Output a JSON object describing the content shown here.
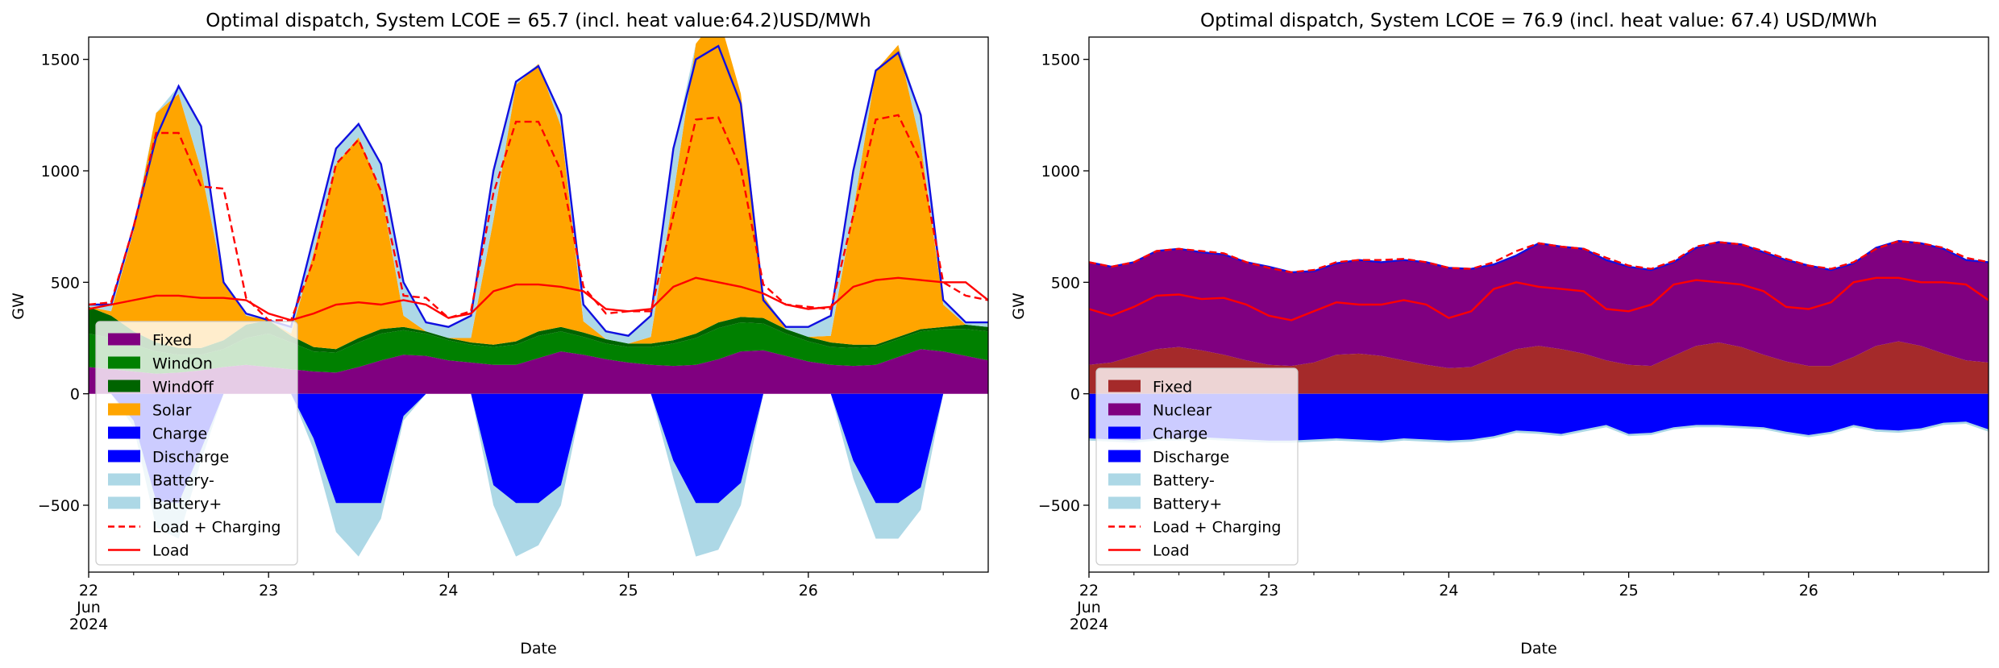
{
  "chart_data": [
    {
      "type": "area",
      "title": "Optimal dispatch, System LCOE = 65.7 (incl. heat value:64.2)USD/MWh",
      "xlabel": "Date",
      "ylabel": "GW",
      "xlim": [
        0,
        120
      ],
      "ylim": [
        -800,
        1600
      ],
      "grid": false,
      "legend_position": "lower-left",
      "x_ticks": [
        {
          "x": 0,
          "lines": [
            "22",
            "Jun",
            "2024"
          ]
        },
        {
          "x": 24,
          "lines": [
            "23"
          ]
        },
        {
          "x": 48,
          "lines": [
            "24"
          ]
        },
        {
          "x": 72,
          "lines": [
            "25"
          ]
        },
        {
          "x": 96,
          "lines": [
            "26"
          ]
        }
      ],
      "y_ticks": [
        -500,
        0,
        500,
        1000,
        1500
      ],
      "x": [
        0,
        3,
        6,
        9,
        12,
        15,
        18,
        21,
        24,
        27,
        30,
        33,
        36,
        39,
        42,
        45,
        48,
        51,
        54,
        57,
        60,
        63,
        66,
        69,
        72,
        75,
        78,
        81,
        84,
        87,
        90,
        93,
        96,
        99,
        102,
        105,
        108,
        111,
        114,
        117,
        120
      ],
      "stacks": [
        {
          "name": "Fixed",
          "color": "#800080",
          "values": [
            120,
            110,
            100,
            90,
            95,
            105,
            120,
            130,
            120,
            110,
            100,
            95,
            120,
            150,
            175,
            170,
            150,
            140,
            130,
            130,
            160,
            190,
            175,
            155,
            140,
            130,
            125,
            130,
            155,
            190,
            195,
            170,
            145,
            130,
            125,
            130,
            165,
            200,
            190,
            170,
            150
          ]
        },
        {
          "name": "WindOn",
          "color": "#008000",
          "values": [
            150,
            140,
            120,
            100,
            80,
            70,
            80,
            120,
            150,
            120,
            90,
            90,
            110,
            120,
            110,
            100,
            90,
            80,
            80,
            90,
            100,
            90,
            80,
            70,
            70,
            80,
            100,
            120,
            140,
            130,
            120,
            100,
            90,
            80,
            80,
            80,
            80,
            80,
            100,
            120,
            130
          ]
        },
        {
          "name": "WindOff",
          "color": "#006400",
          "values": [
            120,
            100,
            60,
            40,
            30,
            30,
            40,
            60,
            60,
            30,
            20,
            15,
            20,
            20,
            15,
            10,
            10,
            10,
            10,
            15,
            20,
            20,
            20,
            20,
            15,
            15,
            15,
            20,
            25,
            25,
            25,
            20,
            20,
            20,
            15,
            10,
            10,
            10,
            10,
            20,
            20
          ]
        },
        {
          "name": "Solar",
          "color": "#FFA500",
          "values": [
            0,
            20,
            450,
            1030,
            1140,
            800,
            260,
            40,
            0,
            10,
            420,
            830,
            900,
            620,
            50,
            0,
            0,
            20,
            560,
            1150,
            1200,
            900,
            50,
            0,
            0,
            30,
            650,
            1300,
            1380,
            1000,
            100,
            0,
            0,
            30,
            600,
            1230,
            1310,
            830,
            100,
            0,
            0
          ]
        }
      ],
      "upper": [
        {
          "name": "Battery+",
          "color": "#ADD8E6",
          "values": [
            400,
            400,
            750,
            1150,
            1380,
            1200,
            500,
            360,
            330,
            300,
            700,
            1100,
            1210,
            1030,
            500,
            320,
            300,
            350,
            1000,
            1400,
            1470,
            1250,
            400,
            280,
            260,
            350,
            1100,
            1500,
            1560,
            1300,
            420,
            300,
            300,
            350,
            1000,
            1450,
            1530,
            1250,
            420,
            320,
            320
          ]
        }
      ],
      "negative": [
        {
          "name": "Charge",
          "color": "#0000FF",
          "values": [
            0,
            0,
            -120,
            -480,
            -490,
            -250,
            0,
            0,
            0,
            0,
            -200,
            -490,
            -490,
            -490,
            -100,
            0,
            0,
            0,
            -410,
            -490,
            -490,
            -410,
            0,
            0,
            0,
            0,
            -300,
            -490,
            -490,
            -400,
            0,
            0,
            0,
            0,
            -300,
            -490,
            -490,
            -420,
            0,
            0,
            0
          ]
        },
        {
          "name": "Battery-",
          "color": "#ADD8E6",
          "values": [
            0,
            0,
            -150,
            -600,
            -650,
            -300,
            0,
            0,
            0,
            0,
            -250,
            -620,
            -730,
            -560,
            -120,
            0,
            0,
            0,
            -500,
            -730,
            -680,
            -500,
            0,
            0,
            0,
            0,
            -380,
            -730,
            -700,
            -500,
            0,
            0,
            0,
            0,
            -380,
            -650,
            -650,
            -520,
            0,
            0,
            0
          ]
        }
      ],
      "lines": [
        {
          "name": "Load + Charging",
          "color": "#FF0000",
          "dashed": true,
          "values": [
            400,
            410,
            750,
            1170,
            1170,
            930,
            920,
            430,
            330,
            330,
            600,
            1030,
            1140,
            910,
            440,
            430,
            340,
            370,
            900,
            1220,
            1220,
            1000,
            480,
            360,
            370,
            370,
            800,
            1230,
            1240,
            1010,
            490,
            400,
            390,
            380,
            800,
            1230,
            1250,
            1040,
            500,
            440,
            420
          ]
        },
        {
          "name": "Load",
          "color": "#FF0000",
          "dashed": false,
          "values": [
            380,
            400,
            420,
            440,
            440,
            430,
            430,
            420,
            360,
            330,
            360,
            400,
            410,
            400,
            420,
            400,
            340,
            360,
            460,
            490,
            490,
            480,
            460,
            380,
            370,
            380,
            480,
            520,
            500,
            480,
            450,
            400,
            380,
            390,
            480,
            510,
            520,
            510,
            500,
            500,
            420
          ]
        }
      ],
      "legend": [
        "Fixed",
        "WindOn",
        "WindOff",
        "Solar",
        "Charge",
        "Discharge",
        "Battery-",
        "Battery+",
        "Load + Charging",
        "Load"
      ],
      "legend_colors": [
        "#800080",
        "#008000",
        "#006400",
        "#FFA500",
        "#0000FF",
        "#0000FF",
        "#ADD8E6",
        "#ADD8E6",
        "#FF0000",
        "#FF0000"
      ],
      "legend_styles": [
        "patch",
        "patch",
        "patch",
        "patch",
        "patch",
        "patch",
        "patch",
        "patch",
        "dashed",
        "line"
      ]
    },
    {
      "type": "area",
      "title": "Optimal dispatch, System LCOE = 76.9 (incl. heat value: 67.4) USD/MWh",
      "xlabel": "Date",
      "ylabel": "GW",
      "xlim": [
        0,
        120
      ],
      "ylim": [
        -800,
        1600
      ],
      "grid": false,
      "legend_position": "lower-left",
      "x_ticks": [
        {
          "x": 0,
          "lines": [
            "22",
            "Jun",
            "2024"
          ]
        },
        {
          "x": 24,
          "lines": [
            "23"
          ]
        },
        {
          "x": 48,
          "lines": [
            "24"
          ]
        },
        {
          "x": 72,
          "lines": [
            "25"
          ]
        },
        {
          "x": 96,
          "lines": [
            "26"
          ]
        }
      ],
      "y_ticks": [
        -500,
        0,
        500,
        1000,
        1500
      ],
      "x": [
        0,
        3,
        6,
        9,
        12,
        15,
        18,
        21,
        24,
        27,
        30,
        33,
        36,
        39,
        42,
        45,
        48,
        51,
        54,
        57,
        60,
        63,
        66,
        69,
        72,
        75,
        78,
        81,
        84,
        87,
        90,
        93,
        96,
        99,
        102,
        105,
        108,
        111,
        114,
        117,
        120
      ],
      "stacks": [
        {
          "name": "Fixed",
          "color": "#A52A2A",
          "values": [
            130,
            140,
            170,
            200,
            210,
            195,
            175,
            150,
            130,
            125,
            140,
            175,
            180,
            170,
            150,
            130,
            115,
            120,
            160,
            200,
            215,
            200,
            180,
            150,
            130,
            125,
            170,
            215,
            230,
            210,
            175,
            145,
            125,
            125,
            165,
            215,
            235,
            215,
            180,
            150,
            140
          ]
        },
        {
          "name": "Nuclear",
          "color": "#800080",
          "values": [
            460,
            430,
            420,
            440,
            440,
            440,
            450,
            440,
            440,
            420,
            410,
            410,
            420,
            420,
            450,
            460,
            450,
            440,
            420,
            420,
            460,
            460,
            470,
            450,
            440,
            430,
            420,
            440,
            450,
            460,
            460,
            455,
            450,
            430,
            420,
            440,
            450,
            460,
            470,
            450,
            450
          ]
        }
      ],
      "upper": [
        {
          "name": "Discharge",
          "color": "#0000FF",
          "values": [
            590,
            570,
            590,
            640,
            650,
            635,
            625,
            590,
            570,
            545,
            550,
            585,
            600,
            590,
            600,
            590,
            565,
            560,
            580,
            620,
            675,
            660,
            650,
            600,
            570,
            555,
            590,
            655,
            680,
            670,
            635,
            600,
            575,
            555,
            585,
            655,
            685,
            675,
            650,
            600,
            590
          ]
        }
      ],
      "negative": [
        {
          "name": "Charge",
          "color": "#0000FF",
          "values": [
            -200,
            -205,
            -210,
            -200,
            -200,
            -195,
            -200,
            -205,
            -210,
            -210,
            -205,
            -200,
            -205,
            -210,
            -200,
            -205,
            -210,
            -205,
            -190,
            -165,
            -170,
            -180,
            -160,
            -140,
            -180,
            -175,
            -150,
            -140,
            -140,
            -145,
            -150,
            -170,
            -185,
            -170,
            -140,
            -160,
            -165,
            -155,
            -130,
            -125,
            -160
          ]
        },
        {
          "name": "Battery-",
          "color": "#ADD8E6",
          "values": [
            -210,
            -215,
            -220,
            -210,
            -210,
            -205,
            -210,
            -215,
            -220,
            -220,
            -215,
            -210,
            -215,
            -220,
            -210,
            -215,
            -220,
            -215,
            -200,
            -175,
            -180,
            -190,
            -170,
            -150,
            -190,
            -185,
            -160,
            -150,
            -150,
            -155,
            -160,
            -180,
            -195,
            -180,
            -150,
            -170,
            -175,
            -165,
            -140,
            -135,
            -170
          ]
        }
      ],
      "lines": [
        {
          "name": "Load + Charging",
          "color": "#FF0000",
          "dashed": true,
          "values": [
            590,
            570,
            590,
            640,
            650,
            640,
            630,
            590,
            565,
            545,
            555,
            590,
            600,
            600,
            605,
            590,
            565,
            560,
            590,
            640,
            675,
            660,
            650,
            610,
            575,
            560,
            595,
            660,
            680,
            670,
            640,
            605,
            575,
            560,
            590,
            650,
            685,
            675,
            655,
            610,
            590
          ]
        },
        {
          "name": "Load",
          "color": "#FF0000",
          "dashed": false,
          "values": [
            380,
            350,
            390,
            440,
            445,
            425,
            430,
            400,
            350,
            330,
            370,
            410,
            400,
            400,
            420,
            400,
            340,
            370,
            470,
            500,
            480,
            470,
            460,
            380,
            370,
            400,
            490,
            510,
            500,
            490,
            460,
            390,
            380,
            410,
            500,
            520,
            520,
            500,
            500,
            490,
            420
          ]
        }
      ],
      "legend": [
        "Fixed",
        "Nuclear",
        "Charge",
        "Discharge",
        "Battery-",
        "Battery+",
        "Load + Charging",
        "Load"
      ],
      "legend_colors": [
        "#A52A2A",
        "#800080",
        "#0000FF",
        "#0000FF",
        "#ADD8E6",
        "#ADD8E6",
        "#FF0000",
        "#FF0000"
      ],
      "legend_styles": [
        "patch",
        "patch",
        "patch",
        "patch",
        "patch",
        "patch",
        "dashed",
        "line"
      ]
    }
  ]
}
